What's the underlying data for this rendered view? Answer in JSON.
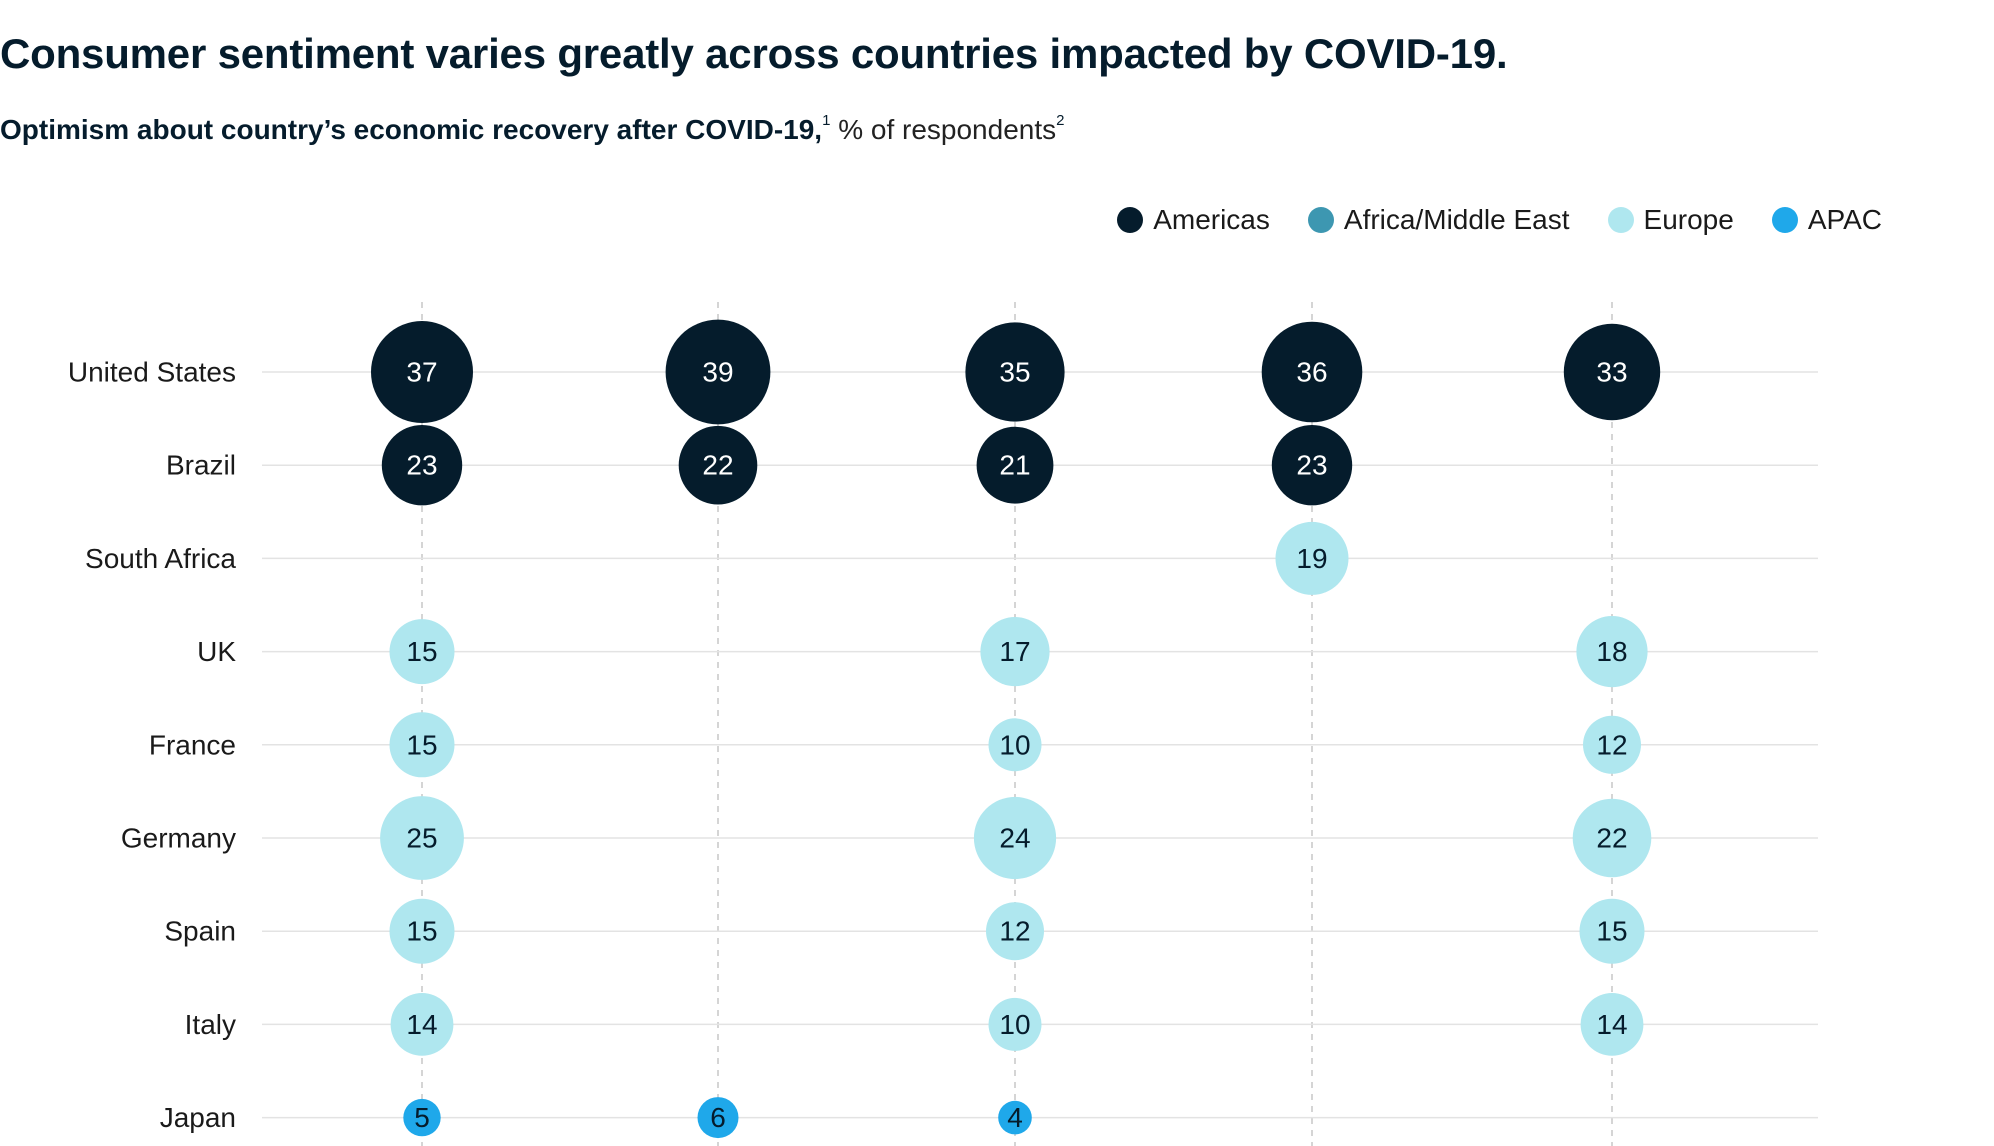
{
  "title": "Consumer sentiment varies greatly across countries impacted by COVID-19.",
  "subtitle": {
    "bold": "Optimism about country’s economic recovery after COVID-19,",
    "footnote1": "1",
    "regular": "% of respondents",
    "footnote2": "2"
  },
  "legend": [
    {
      "label": "Americas",
      "color": "#051c2c"
    },
    {
      "label": "Africa/Middle East",
      "color": "#3d97b1"
    },
    {
      "label": "Europe",
      "color": "#afe7ef"
    },
    {
      "label": "APAC",
      "color": "#1fa8ea"
    }
  ],
  "chart_data": {
    "type": "scatter",
    "encoding": "bubble size and printed label = % of respondents optimistic",
    "categories": [
      "United States",
      "Brazil",
      "South Africa",
      "UK",
      "France",
      "Germany",
      "Spain",
      "Italy",
      "Japan"
    ],
    "columns": 5,
    "grid": true,
    "legend_position": "top-right",
    "series": [
      {
        "name": "Americas",
        "color": "#051c2c",
        "label_color": "#ffffff",
        "points": [
          {
            "country": "United States",
            "column": 1,
            "value": 37
          },
          {
            "country": "United States",
            "column": 2,
            "value": 39
          },
          {
            "country": "United States",
            "column": 3,
            "value": 35
          },
          {
            "country": "United States",
            "column": 4,
            "value": 36
          },
          {
            "country": "United States",
            "column": 5,
            "value": 33
          },
          {
            "country": "Brazil",
            "column": 1,
            "value": 23
          },
          {
            "country": "Brazil",
            "column": 2,
            "value": 22
          },
          {
            "country": "Brazil",
            "column": 3,
            "value": 21
          },
          {
            "country": "Brazil",
            "column": 4,
            "value": 23
          }
        ]
      },
      {
        "name": "Europe",
        "color": "#afe7ef",
        "label_color": "#051c2c",
        "points": [
          {
            "country": "South Africa",
            "column": 4,
            "value": 19
          },
          {
            "country": "UK",
            "column": 1,
            "value": 15
          },
          {
            "country": "UK",
            "column": 3,
            "value": 17
          },
          {
            "country": "UK",
            "column": 5,
            "value": 18
          },
          {
            "country": "France",
            "column": 1,
            "value": 15
          },
          {
            "country": "France",
            "column": 3,
            "value": 10
          },
          {
            "country": "France",
            "column": 5,
            "value": 12
          },
          {
            "country": "Germany",
            "column": 1,
            "value": 25
          },
          {
            "country": "Germany",
            "column": 3,
            "value": 24
          },
          {
            "country": "Germany",
            "column": 5,
            "value": 22
          },
          {
            "country": "Spain",
            "column": 1,
            "value": 15
          },
          {
            "country": "Spain",
            "column": 3,
            "value": 12
          },
          {
            "country": "Spain",
            "column": 5,
            "value": 15
          },
          {
            "country": "Italy",
            "column": 1,
            "value": 14
          },
          {
            "country": "Italy",
            "column": 3,
            "value": 10
          },
          {
            "country": "Italy",
            "column": 5,
            "value": 14
          }
        ]
      },
      {
        "name": "APAC",
        "color": "#1fa8ea",
        "label_color": "#051c2c",
        "points": [
          {
            "country": "Japan",
            "column": 1,
            "value": 5
          },
          {
            "country": "Japan",
            "column": 2,
            "value": 6
          },
          {
            "country": "Japan",
            "column": 3,
            "value": 4
          }
        ]
      }
    ]
  }
}
